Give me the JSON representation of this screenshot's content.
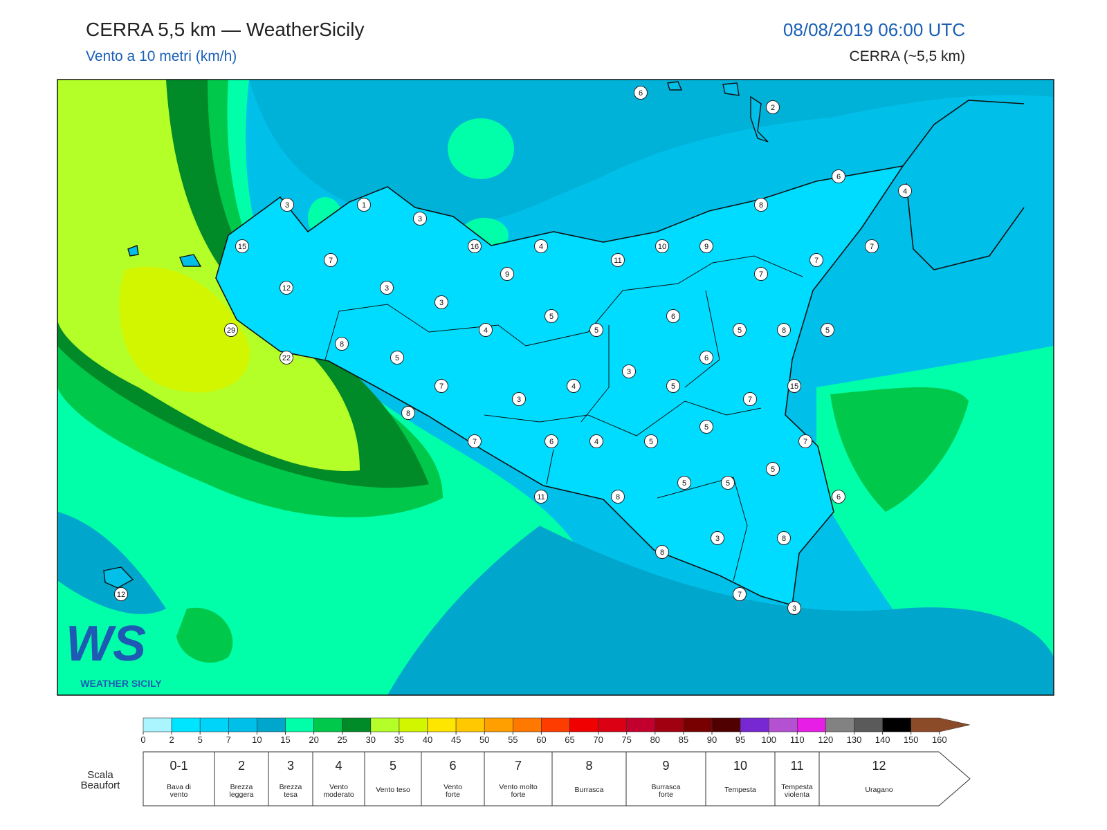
{
  "header": {
    "title": "CERRA 5,5 km — WeatherSicily",
    "subtitle": "Vento a 10 metri (km/h)",
    "datetime": "08/08/2019 06:00 UTC",
    "model": "CERRA (~5,5 km)"
  },
  "map": {
    "stations": [
      "6",
      "2",
      "6",
      "4",
      "8",
      "3",
      "1",
      "3",
      "15",
      "16",
      "4",
      "10",
      "9",
      "7",
      "11",
      "7",
      "7",
      "9",
      "7",
      "12",
      "3",
      "3",
      "5",
      "6",
      "4",
      "5",
      "5",
      "8",
      "5",
      "29",
      "8",
      "22",
      "5",
      "6",
      "3",
      "7",
      "4",
      "5",
      "15",
      "3",
      "7",
      "8",
      "5",
      "7",
      "6",
      "4",
      "5",
      "7",
      "5",
      "5",
      "5",
      "11",
      "8",
      "6",
      "3",
      "8",
      "8",
      "7",
      "3",
      "12"
    ],
    "logo": {
      "mark": "WS",
      "name": "WEATHER SICILY"
    }
  },
  "colorbar": {
    "ticks": [
      0,
      2,
      5,
      7,
      10,
      15,
      20,
      25,
      30,
      35,
      40,
      45,
      50,
      55,
      60,
      65,
      70,
      75,
      80,
      85,
      90,
      95,
      100,
      110,
      120,
      130,
      140,
      150,
      160
    ],
    "colors": [
      "#aaf5ff",
      "#00e5ff",
      "#00d4f8",
      "#00c0ea",
      "#00a6cc",
      "#00ffa8",
      "#00c84b",
      "#008a28",
      "#b4ff28",
      "#d2f500",
      "#ffe600",
      "#ffc800",
      "#ffa000",
      "#ff7800",
      "#ff3c00",
      "#f00000",
      "#dc0014",
      "#c3002d",
      "#a0000f",
      "#780000",
      "#500000",
      "#7828d2",
      "#b450d2",
      "#e61ee6",
      "#828282",
      "#5a5a5a",
      "#000000",
      "#8c4b28",
      "#c88246"
    ]
  },
  "beaufort": {
    "label": [
      "Scala",
      "Beaufort"
    ],
    "levels": [
      {
        "force": "0-1",
        "desc": [
          "Bava di",
          "vento"
        ]
      },
      {
        "force": "2",
        "desc": [
          "Brezza",
          "leggera"
        ]
      },
      {
        "force": "3",
        "desc": [
          "Brezza",
          "tesa"
        ]
      },
      {
        "force": "4",
        "desc": [
          "Vento",
          "moderato"
        ]
      },
      {
        "force": "5",
        "desc": [
          "Vento teso"
        ]
      },
      {
        "force": "6",
        "desc": [
          "Vento",
          "forte"
        ]
      },
      {
        "force": "7",
        "desc": [
          "Vento molto",
          "forte"
        ]
      },
      {
        "force": "8",
        "desc": [
          "Burrasca"
        ]
      },
      {
        "force": "9",
        "desc": [
          "Burrasca",
          "forte"
        ]
      },
      {
        "force": "10",
        "desc": [
          "Tempesta"
        ]
      },
      {
        "force": "11",
        "desc": [
          "Tempesta",
          "violenta"
        ]
      },
      {
        "force": "12",
        "desc": [
          "Uragano"
        ]
      }
    ]
  }
}
